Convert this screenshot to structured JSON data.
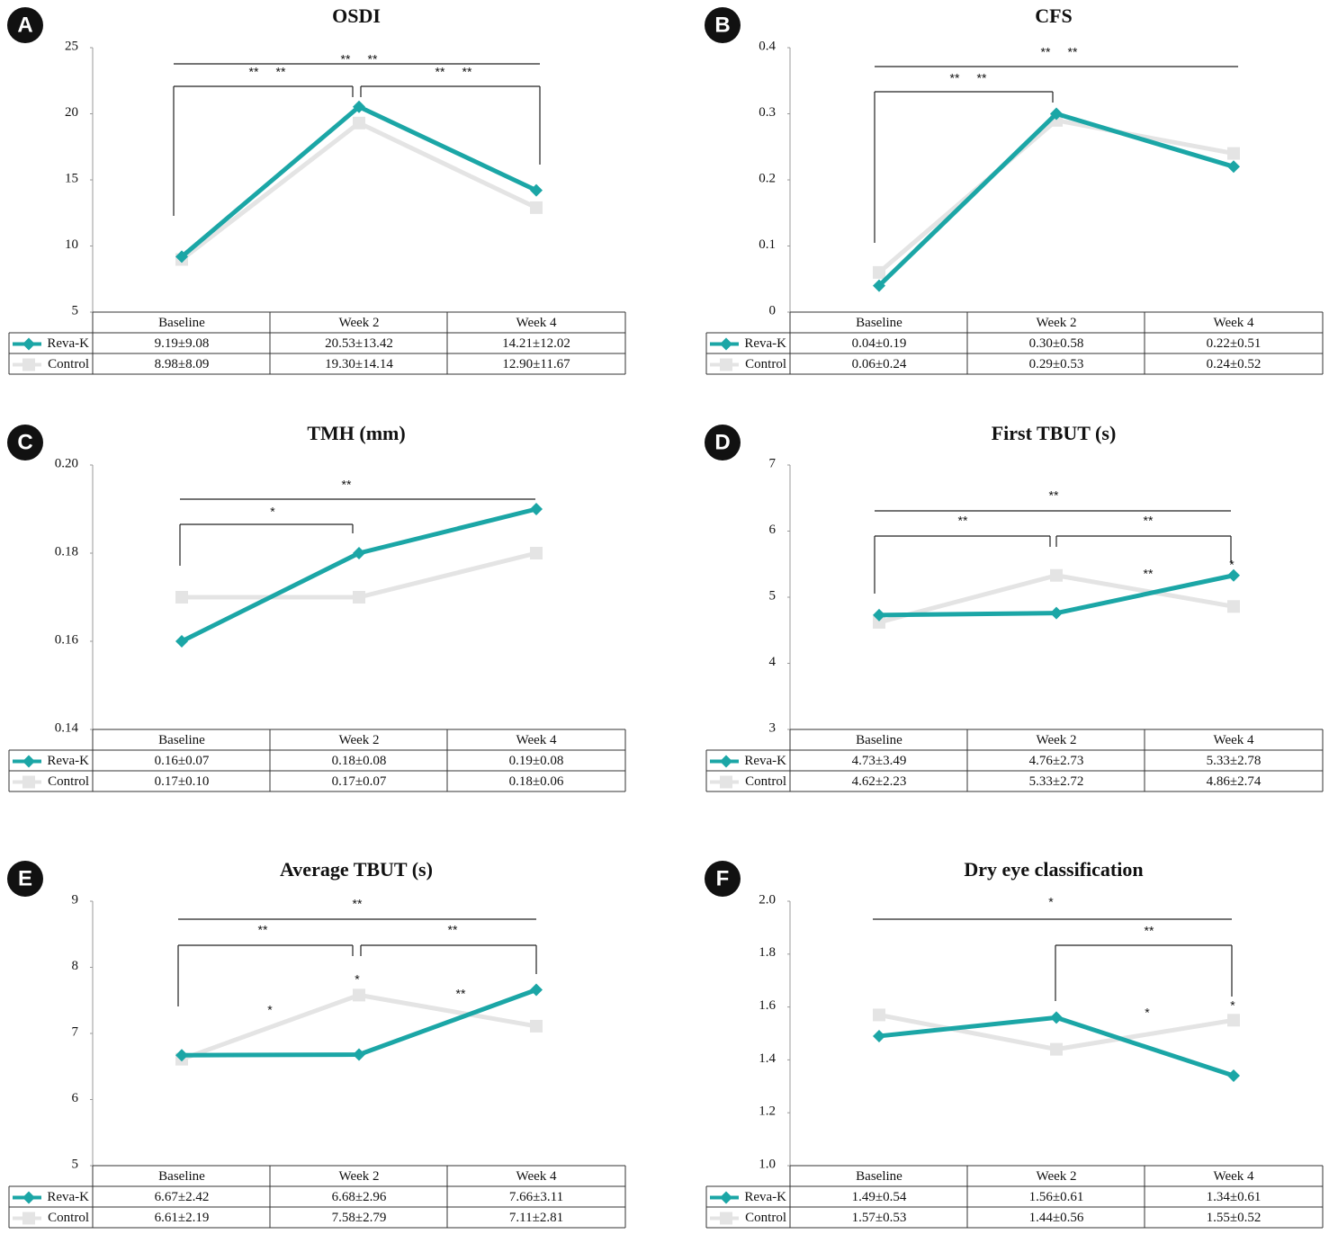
{
  "chart_data": [
    {
      "type": "line",
      "panel": "A",
      "title": "OSDI",
      "categories": [
        "Baseline",
        "Week 2",
        "Week 4"
      ],
      "series": [
        {
          "name": "Reva-K",
          "color": "#1ba6a6",
          "marker": "diamond",
          "values": [
            9.19,
            20.53,
            14.21
          ],
          "value_labels": [
            "9.19±9.08",
            "20.53±13.42",
            "14.21±12.02"
          ]
        },
        {
          "name": "Control",
          "color": "#e4e4e4",
          "marker": "square",
          "values": [
            8.98,
            19.3,
            12.9
          ],
          "value_labels": [
            "8.98±8.09",
            "19.30±14.14",
            "12.90±11.67"
          ]
        }
      ],
      "ylim": [
        5,
        25
      ],
      "yticks": [
        5,
        10,
        15,
        20,
        25
      ],
      "annotations": [
        {
          "text": "**",
          "color": "#3aa9b4"
        },
        {
          "text": "**",
          "color": "#cfcfcf"
        },
        {
          "text": "**",
          "color": "#3aa9b4"
        },
        {
          "text": "**",
          "color": "#cfcfcf"
        },
        {
          "text": "**",
          "color": "#3aa9b4"
        },
        {
          "text": "**",
          "color": "#cfcfcf"
        }
      ]
    },
    {
      "type": "line",
      "panel": "B",
      "title": "CFS",
      "categories": [
        "Baseline",
        "Week 2",
        "Week 4"
      ],
      "series": [
        {
          "name": "Reva-K",
          "color": "#1ba6a6",
          "marker": "diamond",
          "values": [
            0.04,
            0.3,
            0.22
          ],
          "value_labels": [
            "0.04±0.19",
            "0.30±0.58",
            "0.22±0.51"
          ]
        },
        {
          "name": "Control",
          "color": "#e4e4e4",
          "marker": "square",
          "values": [
            0.06,
            0.29,
            0.24
          ],
          "value_labels": [
            "0.06±0.24",
            "0.29±0.53",
            "0.24±0.52"
          ]
        }
      ],
      "ylim": [
        0,
        0.4
      ],
      "yticks": [
        0,
        0.1,
        0.2,
        0.3,
        0.4
      ],
      "annotations": [
        {
          "text": "**",
          "color": "#3aa9b4"
        },
        {
          "text": "**",
          "color": "#cfcfcf"
        },
        {
          "text": "**",
          "color": "#3aa9b4"
        },
        {
          "text": "**",
          "color": "#cfcfcf"
        }
      ]
    },
    {
      "type": "line",
      "panel": "C",
      "title": "TMH (mm)",
      "categories": [
        "Baseline",
        "Week 2",
        "Week 4"
      ],
      "series": [
        {
          "name": "Reva-K",
          "color": "#1ba6a6",
          "marker": "diamond",
          "values": [
            0.16,
            0.18,
            0.19
          ],
          "value_labels": [
            "0.16±0.07",
            "0.18±0.08",
            "0.19±0.08"
          ]
        },
        {
          "name": "Control",
          "color": "#e4e4e4",
          "marker": "square",
          "values": [
            0.17,
            0.17,
            0.18
          ],
          "value_labels": [
            "0.17±0.10",
            "0.17±0.07",
            "0.18±0.06"
          ]
        }
      ],
      "ylim": [
        0.14,
        0.2
      ],
      "yticks": [
        0.14,
        0.16,
        0.18,
        {
          "value": 0.2,
          "label": "0.20"
        }
      ],
      "annotations": [
        {
          "text": "**",
          "color": "#3aa9b4"
        },
        {
          "text": "*",
          "color": "#3aa9b4"
        }
      ]
    },
    {
      "type": "line",
      "panel": "D",
      "title": "First TBUT (s)",
      "categories": [
        "Baseline",
        "Week 2",
        "Week 4"
      ],
      "series": [
        {
          "name": "Reva-K",
          "color": "#1ba6a6",
          "marker": "diamond",
          "values": [
            4.73,
            4.76,
            5.33
          ],
          "value_labels": [
            "4.73±3.49",
            "4.76±2.73",
            "5.33±2.78"
          ]
        },
        {
          "name": "Control",
          "color": "#e4e4e4",
          "marker": "square",
          "values": [
            4.62,
            5.33,
            4.86
          ],
          "value_labels": [
            "4.62±2.23",
            "5.33±2.72",
            "4.86±2.74"
          ]
        }
      ],
      "ylim": [
        3,
        7
      ],
      "yticks": [
        3,
        4,
        5,
        6,
        7
      ],
      "annotations": [
        {
          "text": "**",
          "color": "#3aa9b4"
        },
        {
          "text": "**",
          "color": "#cfcfcf"
        },
        {
          "text": "**",
          "color": "#3aa9b4"
        },
        {
          "text": "**",
          "color": "#222222"
        },
        {
          "text": "*",
          "color": "#222222"
        }
      ]
    },
    {
      "type": "line",
      "panel": "E",
      "title": "Average TBUT (s)",
      "categories": [
        "Baseline",
        "Week 2",
        "Week 4"
      ],
      "series": [
        {
          "name": "Reva-K",
          "color": "#1ba6a6",
          "marker": "diamond",
          "values": [
            6.67,
            6.68,
            7.66
          ],
          "value_labels": [
            "6.67±2.42",
            "6.68±2.96",
            "7.66±3.11"
          ]
        },
        {
          "name": "Control",
          "color": "#e4e4e4",
          "marker": "square",
          "values": [
            6.61,
            7.58,
            7.11
          ],
          "value_labels": [
            "6.61±2.19",
            "7.58±2.79",
            "7.11±2.81"
          ]
        }
      ],
      "ylim": [
        5,
        9
      ],
      "yticks": [
        5,
        6,
        7,
        8,
        9
      ],
      "annotations": [
        {
          "text": "**",
          "color": "#3aa9b4"
        },
        {
          "text": "**",
          "color": "#cfcfcf"
        },
        {
          "text": "**",
          "color": "#3aa9b4"
        },
        {
          "text": "*",
          "color": "#222222"
        },
        {
          "text": "*",
          "color": "#222222"
        },
        {
          "text": "**",
          "color": "#222222"
        }
      ]
    },
    {
      "type": "line",
      "panel": "F",
      "title": "Dry eye classification",
      "categories": [
        "Baseline",
        "Week 2",
        "Week 4"
      ],
      "series": [
        {
          "name": "Reva-K",
          "color": "#1ba6a6",
          "marker": "diamond",
          "values": [
            1.49,
            1.56,
            1.34
          ],
          "value_labels": [
            "1.49±0.54",
            "1.56±0.61",
            "1.34±0.61"
          ]
        },
        {
          "name": "Control",
          "color": "#e4e4e4",
          "marker": "square",
          "values": [
            1.57,
            1.44,
            1.55
          ],
          "value_labels": [
            "1.57±0.53",
            "1.44±0.56",
            "1.55±0.52"
          ]
        }
      ],
      "ylim": [
        1,
        2
      ],
      "yticks": [
        {
          "value": 1,
          "label": "1.0"
        },
        1.2,
        1.4,
        1.6,
        1.8,
        {
          "value": 2,
          "label": "2.0"
        }
      ],
      "annotations": [
        {
          "text": "*",
          "color": "#3aa9b4"
        },
        {
          "text": "**",
          "color": "#3aa9b4"
        },
        {
          "text": "*",
          "color": "#222222"
        },
        {
          "text": "*",
          "color": "#222222"
        }
      ]
    }
  ]
}
